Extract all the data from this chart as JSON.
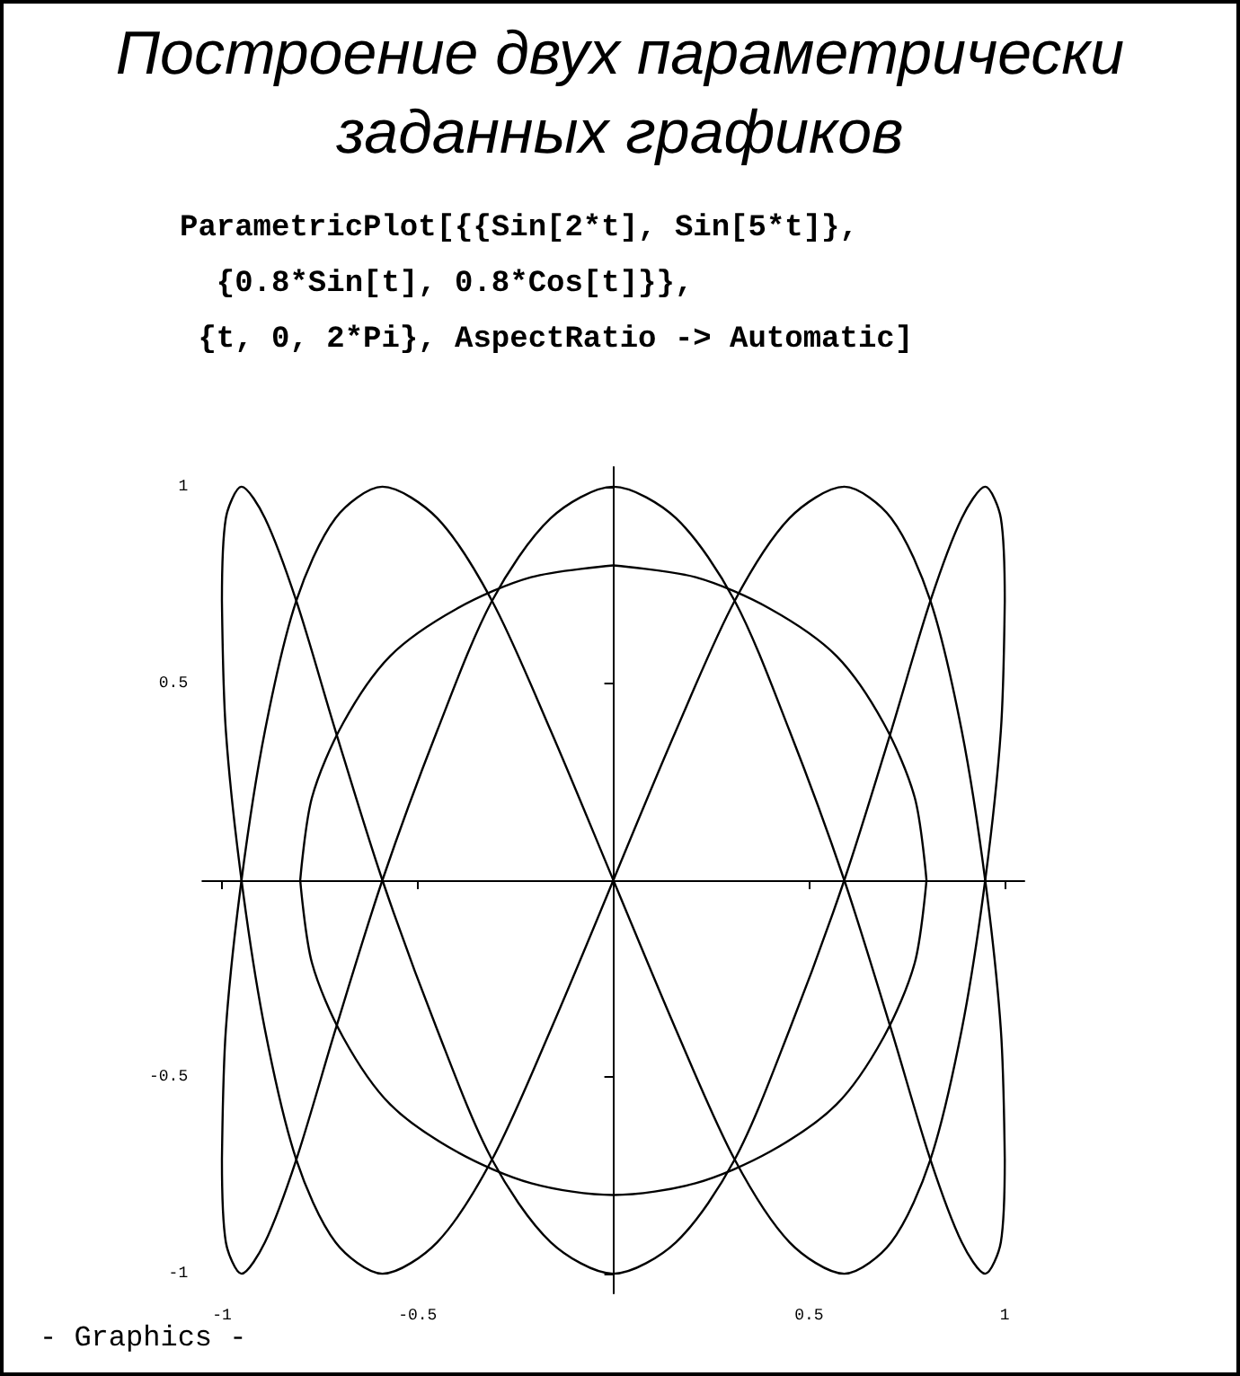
{
  "chart_data": {
    "type": "line",
    "title": "Построение двух параметрически заданных графиков",
    "subtitle": "ParametricPlot[{{Sin[2*t], Sin[5*t]},\n  {0.8*Sin[t], 0.8*Cos[t]}},\n {t, 0, 2*Pi}, AspectRatio -> Automatic]",
    "annotations": [
      "- Graphics -"
    ],
    "series": [
      {
        "color": "#000000",
        "x": [
          0,
          0.16,
          0.31,
          0.45,
          0.59,
          0.71,
          0.81,
          0.89,
          0.95,
          0.99,
          1
        ],
        "values": [
          0,
          0.38,
          0.71,
          0.92,
          1,
          0.92,
          0.71,
          0.38,
          0,
          -0.38,
          -0.71
        ]
      },
      {
        "color": "#000000",
        "x": [
          1,
          0.99,
          0.95,
          0.89,
          0.81,
          0.71,
          0.59,
          0.45,
          0.31,
          0.16,
          0,
          -0.16,
          -0.31,
          -0.45,
          -0.59,
          -0.71,
          -0.81,
          -0.89,
          -0.95,
          -0.99,
          -1
        ],
        "values": [
          -0.71,
          -0.92,
          -1,
          -0.92,
          -0.71,
          -0.38,
          0,
          0.38,
          0.71,
          0.92,
          1,
          0.92,
          0.71,
          0.38,
          0,
          -0.38,
          -0.71,
          -0.92,
          -1,
          -0.92,
          -0.71
        ]
      },
      {
        "color": "#000000",
        "x": [
          -1,
          -0.99,
          -0.95,
          -0.89,
          -0.81,
          -0.71,
          -0.59,
          -0.45,
          -0.31,
          -0.16,
          0,
          0.16,
          0.31,
          0.45,
          0.59,
          0.71,
          0.81,
          0.89,
          0.95,
          0.99,
          1
        ],
        "values": [
          -0.71,
          -0.38,
          0,
          0.38,
          0.71,
          0.92,
          1,
          0.92,
          0.71,
          0.38,
          0,
          -0.38,
          -0.71,
          -0.92,
          -1,
          -0.92,
          -0.71,
          -0.38,
          0,
          0.38,
          0.71
        ]
      },
      {
        "color": "#000000",
        "x": [
          1,
          0.99,
          0.95,
          0.89,
          0.81,
          0.71,
          0.59,
          0.45,
          0.31,
          0.16,
          0,
          -0.16,
          -0.31,
          -0.45,
          -0.59,
          -0.71,
          -0.81,
          -0.89,
          -0.95,
          -0.99,
          -1
        ],
        "values": [
          0.71,
          0.92,
          1,
          0.92,
          0.71,
          0.38,
          0,
          -0.38,
          -0.71,
          -0.92,
          -1,
          -0.92,
          -0.71,
          -0.38,
          0,
          0.38,
          0.71,
          0.92,
          1,
          0.92,
          0.71
        ]
      },
      {
        "color": "#000000",
        "x": [
          -1,
          -0.99,
          -0.95,
          -0.89,
          -0.81,
          -0.71,
          -0.59,
          -0.45,
          -0.31,
          -0.16,
          0
        ],
        "values": [
          0.71,
          0.38,
          0,
          -0.38,
          -0.71,
          -0.92,
          -1,
          -0.92,
          -0.71,
          -0.38,
          0
        ]
      },
      {
        "color": "#000000",
        "x": [
          0,
          0.21,
          0.4,
          0.57,
          0.69,
          0.77,
          0.8
        ],
        "values": [
          0.8,
          0.77,
          0.69,
          0.57,
          0.4,
          0.21,
          0
        ]
      },
      {
        "color": "#000000",
        "x": [
          0.8,
          0.77,
          0.69,
          0.57,
          0.4,
          0.21,
          0,
          -0.21,
          -0.4,
          -0.57,
          -0.69,
          -0.77,
          -0.8
        ],
        "values": [
          0,
          -0.21,
          -0.4,
          -0.57,
          -0.69,
          -0.77,
          -0.8,
          -0.77,
          -0.69,
          -0.57,
          -0.4,
          -0.21,
          0
        ]
      },
      {
        "color": "#000000",
        "x": [
          -0.8,
          -0.77,
          -0.69,
          -0.57,
          -0.4,
          -0.21,
          0
        ],
        "values": [
          0,
          0.21,
          0.4,
          0.57,
          0.69,
          0.77,
          0.8
        ]
      }
    ],
    "xlim": [
      -1.05,
      1.05
    ],
    "xticks": [
      -1,
      -0.5,
      0.5,
      1
    ],
    "ylim": [
      -1.05,
      1.05
    ],
    "yticks": [
      -1,
      -0.5,
      0.5,
      1
    ],
    "grid": false,
    "marker": "none",
    "line_style": "solid"
  }
}
